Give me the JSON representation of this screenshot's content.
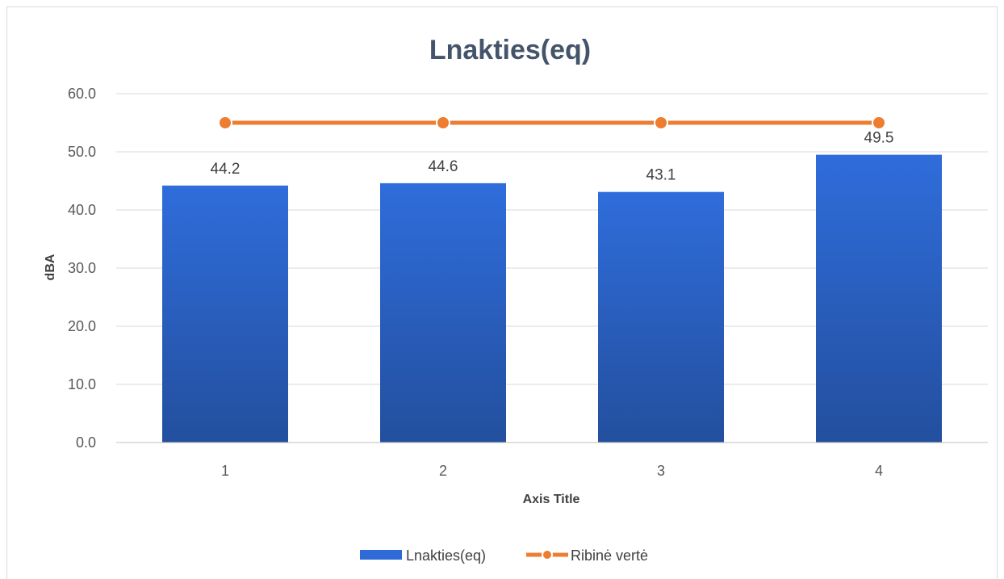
{
  "chart_data": {
    "type": "bar",
    "title": "Lnakties(eq)",
    "xlabel": "Axis Title",
    "ylabel": "dBA",
    "categories": [
      "1",
      "2",
      "3",
      "4"
    ],
    "ylim": [
      0,
      60
    ],
    "yticks": [
      "0.0",
      "10.0",
      "20.0",
      "30.0",
      "40.0",
      "50.0",
      "60.0"
    ],
    "grid": true,
    "legend_position": "bottom",
    "series": [
      {
        "name": "Lnakties(eq)",
        "type": "bar",
        "values": [
          44.2,
          44.6,
          43.1,
          49.5
        ],
        "labels": [
          "44.2",
          "44.6",
          "43.1",
          "49.5"
        ],
        "color": "#2f6bd8"
      },
      {
        "name": "Ribinė vertė",
        "type": "line",
        "values": [
          55,
          55,
          55,
          55
        ],
        "color": "#ed7d31"
      }
    ]
  }
}
